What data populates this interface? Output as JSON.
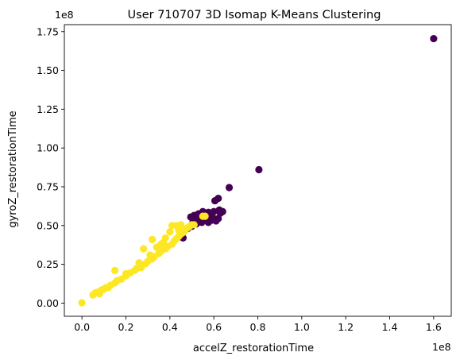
{
  "chart_data": {
    "type": "scatter",
    "title": "User 710707 3D Isomap K-Means Clustering",
    "xlabel": "accelZ_restorationTime",
    "ylabel": "gyroZ_restorationTime",
    "x_offset_label": "1e8",
    "y_offset_label": "1e8",
    "x_scale": 100000000,
    "y_scale": 100000000,
    "xlim": [
      -0.08,
      1.68
    ],
    "ylim": [
      -0.085,
      1.795
    ],
    "x_ticks": [
      0.0,
      0.2,
      0.4,
      0.6,
      0.8,
      1.0,
      1.2,
      1.4,
      1.6
    ],
    "y_ticks": [
      0.0,
      0.25,
      0.5,
      0.75,
      1.0,
      1.25,
      1.5,
      1.75
    ],
    "x_tick_labels": [
      "0.0",
      "0.2",
      "0.4",
      "0.6",
      "0.8",
      "1.0",
      "1.2",
      "1.4",
      "1.6"
    ],
    "y_tick_labels": [
      "0.00",
      "0.25",
      "0.50",
      "0.75",
      "1.00",
      "1.25",
      "1.50",
      "1.75"
    ],
    "grid": false,
    "series": [
      {
        "color": "#440154",
        "points": [
          [
            1.6,
            1.705
          ],
          [
            0.805,
            0.86
          ],
          [
            0.67,
            0.745
          ],
          [
            0.62,
            0.675
          ],
          [
            0.605,
            0.66
          ],
          [
            0.63,
            0.58
          ],
          [
            0.6,
            0.59
          ],
          [
            0.575,
            0.585
          ],
          [
            0.55,
            0.59
          ],
          [
            0.53,
            0.575
          ],
          [
            0.51,
            0.565
          ],
          [
            0.495,
            0.555
          ],
          [
            0.56,
            0.545
          ],
          [
            0.59,
            0.535
          ],
          [
            0.61,
            0.53
          ],
          [
            0.575,
            0.52
          ],
          [
            0.545,
            0.52
          ],
          [
            0.52,
            0.51
          ],
          [
            0.5,
            0.495
          ],
          [
            0.48,
            0.48
          ],
          [
            0.46,
            0.455
          ],
          [
            0.45,
            0.44
          ],
          [
            0.46,
            0.42
          ],
          [
            0.535,
            0.555
          ],
          [
            0.56,
            0.575
          ],
          [
            0.585,
            0.56
          ],
          [
            0.6,
            0.545
          ],
          [
            0.625,
            0.6
          ],
          [
            0.64,
            0.59
          ],
          [
            0.52,
            0.54
          ],
          [
            0.505,
            0.52
          ],
          [
            0.62,
            0.545
          ]
        ]
      },
      {
        "color": "#fde725",
        "points": [
          [
            0.0,
            0.002
          ],
          [
            0.05,
            0.052
          ],
          [
            0.07,
            0.07
          ],
          [
            0.09,
            0.085
          ],
          [
            0.11,
            0.1
          ],
          [
            0.13,
            0.115
          ],
          [
            0.15,
            0.13
          ],
          [
            0.16,
            0.145
          ],
          [
            0.18,
            0.155
          ],
          [
            0.2,
            0.175
          ],
          [
            0.22,
            0.195
          ],
          [
            0.24,
            0.21
          ],
          [
            0.25,
            0.225
          ],
          [
            0.27,
            0.24
          ],
          [
            0.29,
            0.255
          ],
          [
            0.3,
            0.27
          ],
          [
            0.32,
            0.285
          ],
          [
            0.33,
            0.3
          ],
          [
            0.35,
            0.32
          ],
          [
            0.36,
            0.335
          ],
          [
            0.38,
            0.35
          ],
          [
            0.39,
            0.365
          ],
          [
            0.41,
            0.38
          ],
          [
            0.42,
            0.4
          ],
          [
            0.43,
            0.415
          ],
          [
            0.44,
            0.43
          ],
          [
            0.45,
            0.445
          ],
          [
            0.46,
            0.455
          ],
          [
            0.47,
            0.47
          ],
          [
            0.48,
            0.485
          ],
          [
            0.49,
            0.495
          ],
          [
            0.5,
            0.505
          ],
          [
            0.51,
            0.505
          ],
          [
            0.12,
            0.1
          ],
          [
            0.27,
            0.23
          ],
          [
            0.15,
            0.21
          ],
          [
            0.32,
            0.41
          ],
          [
            0.28,
            0.35
          ],
          [
            0.41,
            0.5
          ],
          [
            0.43,
            0.5
          ],
          [
            0.45,
            0.505
          ],
          [
            0.4,
            0.46
          ],
          [
            0.55,
            0.56
          ],
          [
            0.56,
            0.56
          ],
          [
            0.37,
            0.39
          ],
          [
            0.34,
            0.36
          ],
          [
            0.38,
            0.42
          ],
          [
            0.1,
            0.09
          ],
          [
            0.2,
            0.19
          ],
          [
            0.26,
            0.26
          ],
          [
            0.31,
            0.31
          ],
          [
            0.44,
            0.47
          ],
          [
            0.36,
            0.38
          ],
          [
            0.08,
            0.06
          ],
          [
            0.06,
            0.065
          ]
        ]
      }
    ]
  }
}
